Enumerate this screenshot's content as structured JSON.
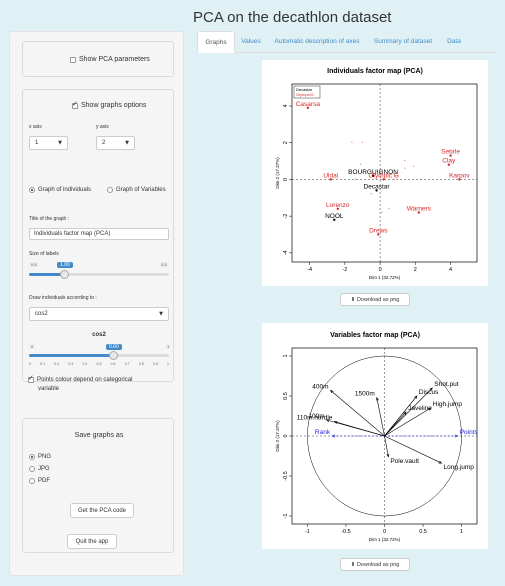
{
  "app_title": "PCA on the decathlon dataset",
  "sidebar": {
    "show_pca_params": "Show PCA parameters",
    "show_graphs_options": "Show graphs options",
    "x_axis_label": "x axis",
    "y_axis_label": "y axis",
    "x_axis_value": "1",
    "y_axis_value": "2",
    "radio_individuals": "Graph of individuals",
    "radio_variables": "Graph of Variables",
    "title_label": "Title of the graph :",
    "title_value": "Individuals factor map (PCA)",
    "size_label": "Size of labels",
    "size_min": "0.5",
    "size_max": "2.5",
    "size_value": "1.00",
    "size_fraction": 0.25,
    "draw_label": "Draw individuals according to :",
    "draw_value": "cos2",
    "cos2_title": "cos2",
    "cos2_min": "0",
    "cos2_max": "1",
    "cos2_value": "0.60",
    "cos2_fraction": 0.6,
    "cos2_ticks": [
      "0",
      "0.1",
      "0.2",
      "0.3",
      "0.4",
      "0.5",
      "0.6",
      "0.7",
      "0.8",
      "0.9",
      "1"
    ],
    "points_colour_line1": "Points colour depend on categorical",
    "points_colour_line2": "variable",
    "save_as": "Save graphs as",
    "format_png": "PNG",
    "format_jpg": "JPG",
    "format_pdf": "PDF",
    "get_code": "Get the PCA code",
    "quit": "Quit the app"
  },
  "tabs": [
    "Graphs",
    "Values",
    "Automatic description of axes",
    "Summary of dataset",
    "Data"
  ],
  "active_tab": "Graphs",
  "download_label": "Download as png",
  "colors": {
    "accent": "#428bca",
    "red": "#d62728",
    "blue": "#1f1fd6",
    "bg": "#dff1f5"
  },
  "chart_data": [
    {
      "type": "scatter",
      "title": "Individuals factor map (PCA)",
      "xlabel": "Dim 1 (32.72%)",
      "ylabel": "Dim 2 (17.37%)",
      "xlim": [
        -5,
        5.5
      ],
      "ylim": [
        -4.5,
        5.2
      ],
      "xticks": [
        -4,
        -2,
        0,
        2,
        4
      ],
      "yticks": [
        -4,
        -2,
        0,
        2,
        4
      ],
      "legend": [
        "Decastar",
        "OlympicG"
      ],
      "legend_position": "top-left",
      "points": [
        {
          "label": "Casarsa",
          "x": -4.1,
          "y": 3.9,
          "group": "OlympicG"
        },
        {
          "label": "Sebrle",
          "x": 4.0,
          "y": 1.3,
          "group": "OlympicG"
        },
        {
          "label": "Clay",
          "x": 3.9,
          "y": 0.8,
          "group": "OlympicG"
        },
        {
          "label": "Karpov",
          "x": 4.5,
          "y": 0.0,
          "group": "OlympicG"
        },
        {
          "label": "BOURGUIGNON",
          "x": -0.4,
          "y": 0.2,
          "group": "Decastar"
        },
        {
          "label": "Uldal",
          "x": -2.8,
          "y": 0.0,
          "group": "OlympicG"
        },
        {
          "label": "Decastar",
          "x": -0.2,
          "y": -0.6,
          "group": "Decastar"
        },
        {
          "label": "Olympic G",
          "x": 0.2,
          "y": 0.0,
          "group": "OlympicG"
        },
        {
          "label": "Lorenzo",
          "x": -2.4,
          "y": -1.6,
          "group": "OlympicG"
        },
        {
          "label": "NOOL",
          "x": -2.6,
          "y": -2.2,
          "group": "Decastar"
        },
        {
          "label": "Warners",
          "x": 2.2,
          "y": -1.8,
          "group": "OlympicG"
        },
        {
          "label": "Drews",
          "x": -0.1,
          "y": -3.0,
          "group": "OlympicG"
        },
        {
          "label": "",
          "x": -1.6,
          "y": 2.0,
          "group": "OlympicG"
        },
        {
          "label": "",
          "x": -1.0,
          "y": 2.0,
          "group": "OlympicG"
        },
        {
          "label": "",
          "x": -1.1,
          "y": 0.8,
          "group": "OlympicG"
        },
        {
          "label": "",
          "x": 0.0,
          "y": 0.4,
          "group": "OlympicG"
        },
        {
          "label": "",
          "x": 1.4,
          "y": 1.0,
          "group": "OlympicG"
        },
        {
          "label": "",
          "x": 1.9,
          "y": 0.7,
          "group": "OlympicG"
        },
        {
          "label": "",
          "x": 1.4,
          "y": 0.6,
          "group": "OlympicG"
        },
        {
          "label": "",
          "x": 0.9,
          "y": 0.2,
          "group": "OlympicG"
        },
        {
          "label": "",
          "x": 0.8,
          "y": 0.0,
          "group": "OlympicG"
        },
        {
          "label": "",
          "x": 2.3,
          "y": 0.0,
          "group": "OlympicG"
        },
        {
          "label": "",
          "x": 0.3,
          "y": -0.4,
          "group": "OlympicG"
        },
        {
          "label": "",
          "x": -0.5,
          "y": -0.8,
          "group": "OlympicG"
        },
        {
          "label": "",
          "x": 0.5,
          "y": -1.6,
          "group": "OlympicG"
        },
        {
          "label": "",
          "x": 0.1,
          "y": -1.8,
          "group": "OlympicG"
        },
        {
          "label": "",
          "x": -1.4,
          "y": 0.0,
          "group": "OlympicG"
        }
      ]
    },
    {
      "type": "scatter",
      "title": "Variables factor map (PCA)",
      "xlabel": "Dim 1 (32.72%)",
      "ylabel": "Dim 2 (17.37%)",
      "xlim": [
        -1.2,
        1.2
      ],
      "ylim": [
        -1.1,
        1.1
      ],
      "xticks": [
        -1.0,
        -0.5,
        0.0,
        0.5,
        1.0
      ],
      "yticks": [
        -1.0,
        -0.5,
        0.0,
        0.5,
        1.0
      ],
      "vectors": [
        {
          "label": "400m",
          "x": -0.7,
          "y": 0.57,
          "color": "black"
        },
        {
          "label": "1500m",
          "x": -0.1,
          "y": 0.48,
          "color": "black"
        },
        {
          "label": "Discus",
          "x": 0.42,
          "y": 0.5,
          "color": "black"
        },
        {
          "label": "Shot.put",
          "x": 0.62,
          "y": 0.6,
          "color": "black"
        },
        {
          "label": "High.jump",
          "x": 0.6,
          "y": 0.35,
          "color": "black"
        },
        {
          "label": "Javeline",
          "x": 0.28,
          "y": 0.3,
          "color": "black"
        },
        {
          "label": "100m",
          "x": -0.75,
          "y": 0.2,
          "color": "black"
        },
        {
          "label": "110m.hurdle",
          "x": -0.65,
          "y": 0.18,
          "color": "black"
        },
        {
          "label": "Rank",
          "x": -0.68,
          "y": 0.0,
          "color": "blue",
          "dashed": true
        },
        {
          "label": "Points",
          "x": 0.95,
          "y": 0.0,
          "color": "blue",
          "dashed": true
        },
        {
          "label": "Pole.vault",
          "x": 0.05,
          "y": -0.26,
          "color": "black"
        },
        {
          "label": "Long.jump",
          "x": 0.74,
          "y": -0.34,
          "color": "black"
        }
      ]
    }
  ]
}
